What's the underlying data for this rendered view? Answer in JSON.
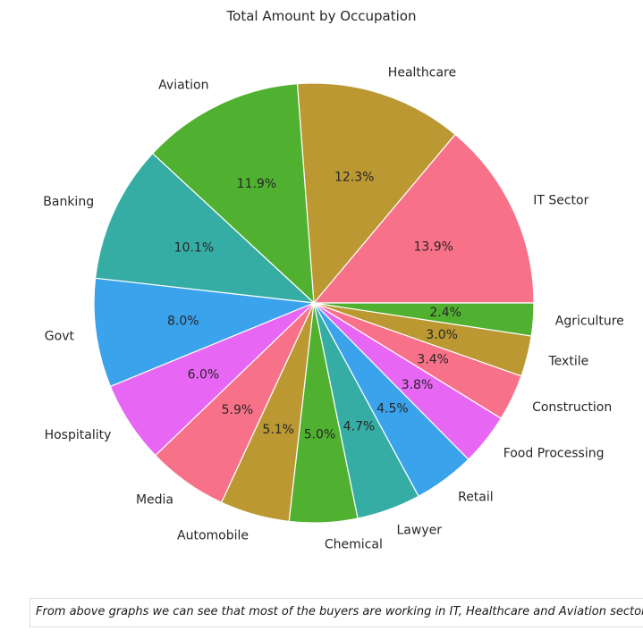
{
  "chart_data": {
    "type": "pie",
    "title": "Total Amount by Occupation",
    "categories": [
      "IT Sector",
      "Healthcare",
      "Aviation",
      "Banking",
      "Govt",
      "Hospitality",
      "Media",
      "Automobile",
      "Chemical",
      "Lawyer",
      "Retail",
      "Food Processing",
      "Construction",
      "Textile",
      "Agriculture"
    ],
    "values": [
      13.9,
      12.3,
      11.9,
      10.1,
      8.0,
      6.0,
      5.9,
      5.1,
      5.0,
      4.7,
      4.5,
      3.8,
      3.4,
      3.0,
      2.4
    ],
    "value_labels": [
      "13.9%",
      "12.3%",
      "11.9%",
      "10.1%",
      "8.0%",
      "6.0%",
      "5.9%",
      "5.1%",
      "5.0%",
      "4.7%",
      "4.5%",
      "3.8%",
      "3.4%",
      "3.0%",
      "2.4%"
    ],
    "colors": [
      "#f77189",
      "#bb9832",
      "#50b131",
      "#36ada4",
      "#3ba3ec",
      "#e866f4",
      "#f77189",
      "#bb9832",
      "#50b131",
      "#36ada4",
      "#3ba3ec",
      "#e866f4",
      "#f77189",
      "#bb9832",
      "#50b131"
    ],
    "start_angle_deg": 0,
    "direction": "counterclockwise",
    "legend": "none"
  },
  "note": {
    "text": "From above graphs we can see that most of the buyers are working in IT, Healthcare and Aviation sector"
  }
}
